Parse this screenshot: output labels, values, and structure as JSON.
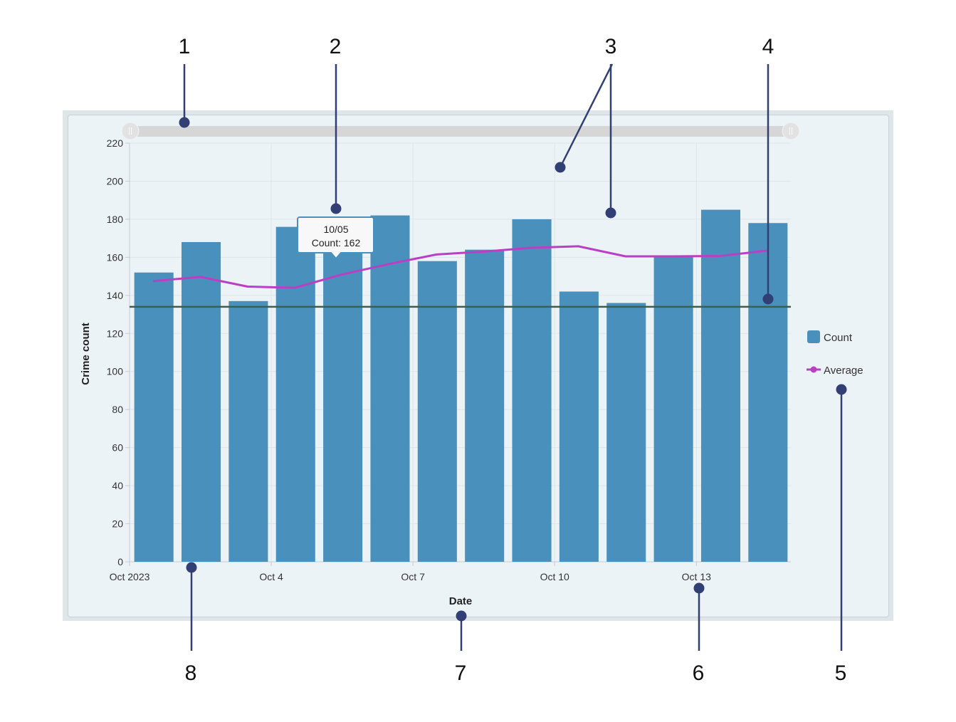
{
  "chart_data": {
    "type": "bar",
    "xlabel": "Date",
    "ylabel": "Crime count",
    "ylim": [
      0,
      220
    ],
    "yticks": [
      0,
      20,
      40,
      60,
      80,
      100,
      120,
      140,
      160,
      180,
      200,
      220
    ],
    "xticks": [
      {
        "date": "2023-10-01",
        "label": "Oct 2023"
      },
      {
        "date": "2023-10-04",
        "label": "Oct 4"
      },
      {
        "date": "2023-10-07",
        "label": "Oct 7"
      },
      {
        "date": "2023-10-10",
        "label": "Oct 10"
      },
      {
        "date": "2023-10-13",
        "label": "Oct 13"
      }
    ],
    "x": [
      "2023-10-01",
      "2023-10-02",
      "2023-10-03",
      "2023-10-04",
      "2023-10-05",
      "2023-10-06",
      "2023-10-07",
      "2023-10-08",
      "2023-10-09",
      "2023-10-10",
      "2023-10-11",
      "2023-10-12",
      "2023-10-13",
      "2023-10-14"
    ],
    "series": [
      {
        "name": "Count",
        "type": "bar",
        "color": "#4a90bc",
        "values": [
          152,
          168,
          137,
          176,
          162,
          182,
          158,
          164,
          180,
          142,
          136,
          161,
          185,
          178
        ]
      },
      {
        "name": "Average",
        "type": "line",
        "color": "#b940c4",
        "values": [
          147.5,
          149.7,
          144.6,
          144,
          151,
          156.5,
          161.5,
          163,
          165,
          165.8,
          160.5,
          160.5,
          160.7,
          163.5
        ]
      }
    ],
    "reference_line": {
      "value": 134,
      "color": "#3e5e4c"
    },
    "grid": true,
    "legend": "right",
    "tooltip": {
      "date_label": "10/05",
      "text": "Count: 162"
    },
    "range_slider": true
  },
  "callouts": [
    "1",
    "2",
    "3",
    "4",
    "5",
    "6",
    "7",
    "8"
  ],
  "colors": {
    "callout": "#323f75",
    "panel": "#ecf3f7",
    "slider": "#d6d6d6"
  }
}
